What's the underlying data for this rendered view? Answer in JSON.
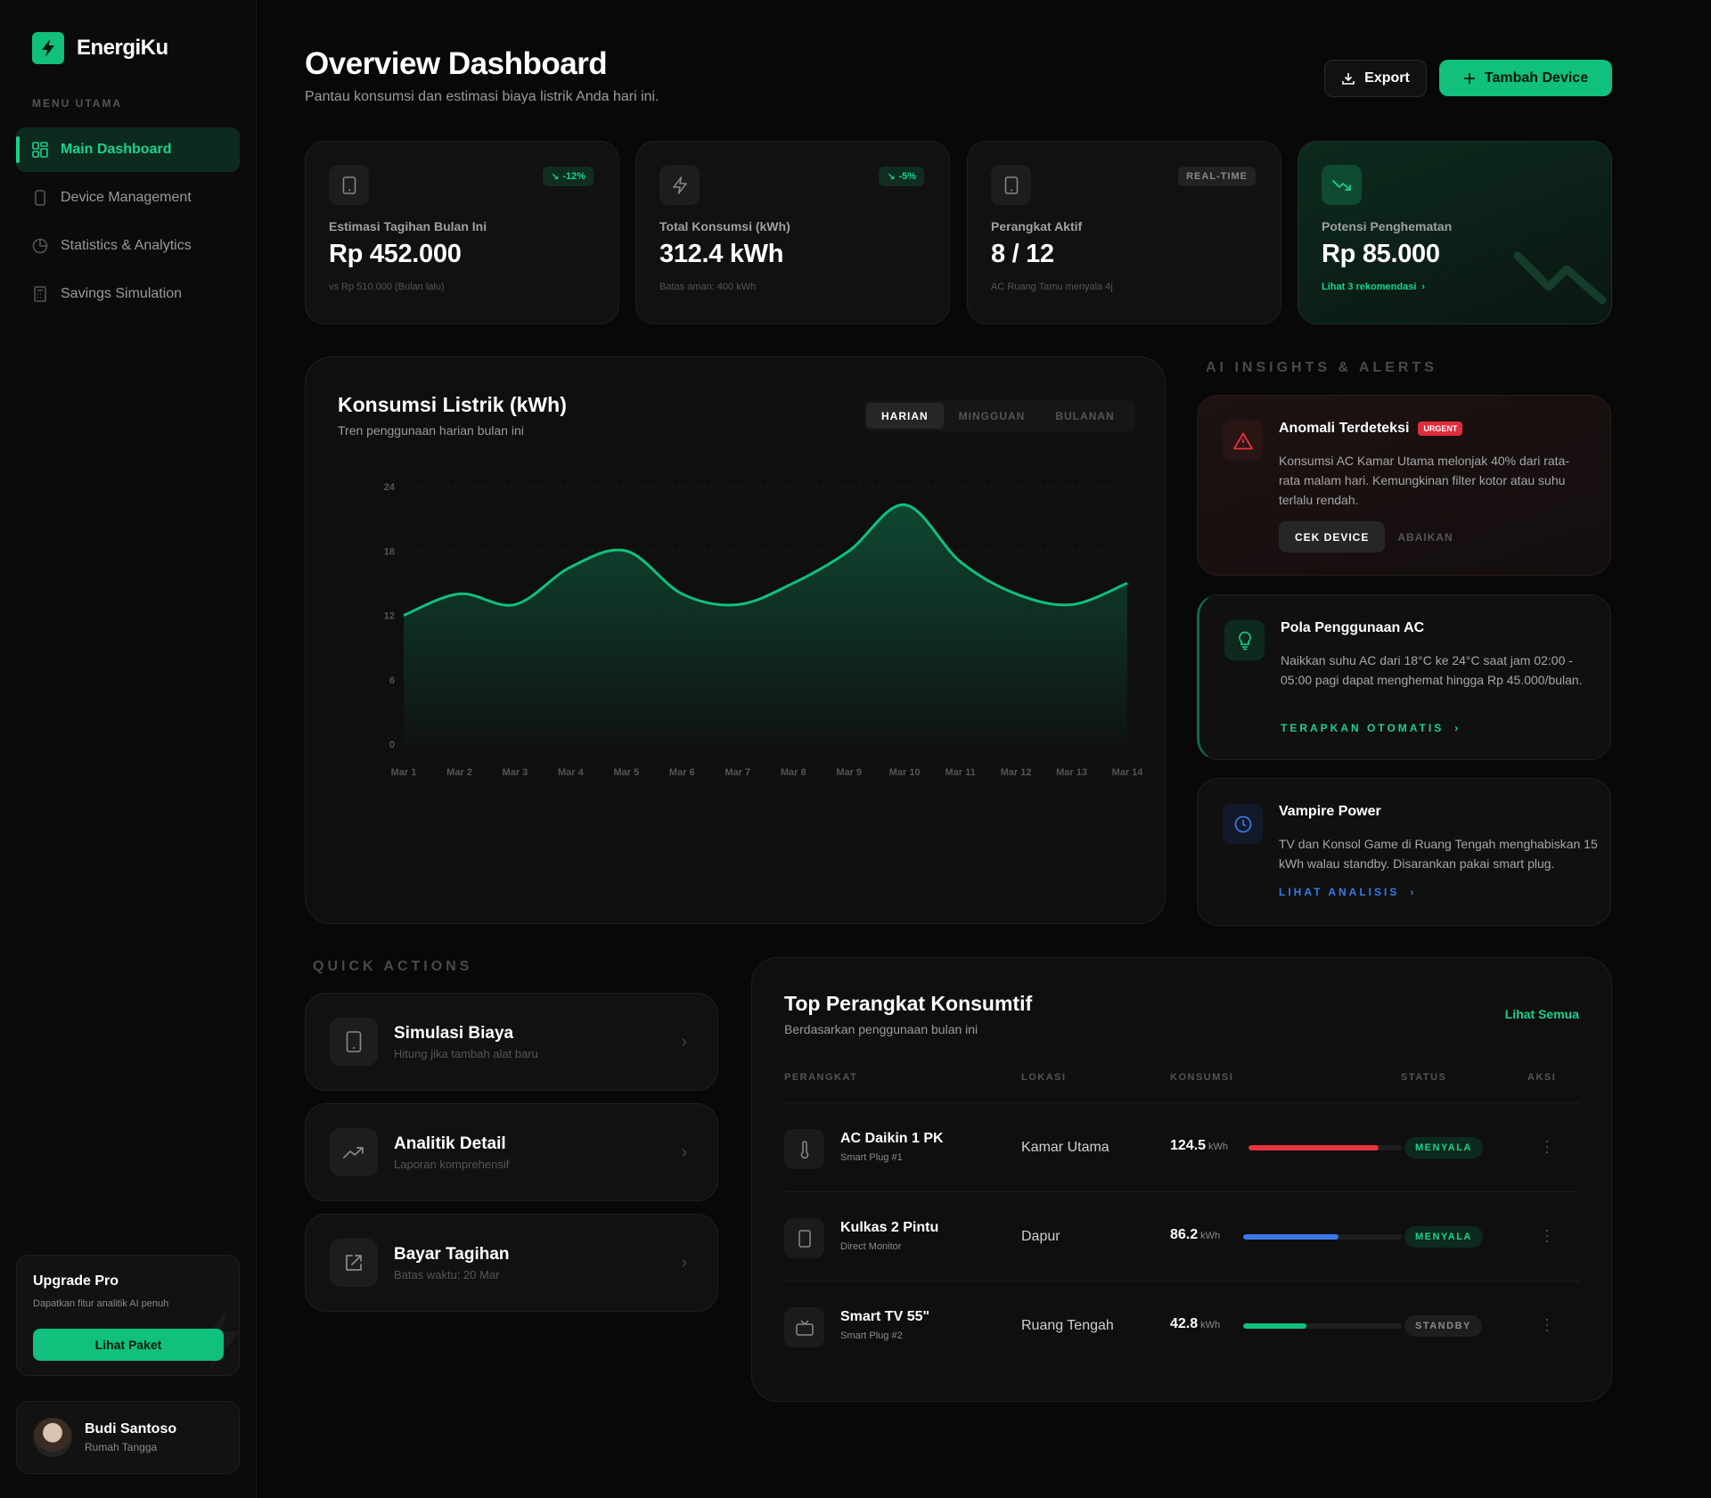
{
  "app": {
    "name": "EnergiKu"
  },
  "sidebar": {
    "menu_heading": "MENU UTAMA",
    "items": [
      {
        "label": "Main Dashboard",
        "icon": "grid-icon",
        "active": true
      },
      {
        "label": "Device Management",
        "icon": "device-icon"
      },
      {
        "label": "Statistics & Analytics",
        "icon": "pie-icon"
      },
      {
        "label": "Savings Simulation",
        "icon": "calculator-icon"
      }
    ],
    "upgrade": {
      "title": "Upgrade Pro",
      "text": "Dapatkan fitur analitik AI penuh",
      "button": "Lihat Paket"
    },
    "user": {
      "name": "Budi Santoso",
      "role": "Rumah Tangga"
    }
  },
  "header": {
    "title": "Overview Dashboard",
    "subtitle": "Pantau konsumsi dan estimasi biaya listrik Anda hari ini.",
    "export_label": "Export",
    "add_label": "Tambah Device"
  },
  "stats": [
    {
      "label": "Estimasi Tagihan Bulan Ini",
      "value": "Rp 452.000",
      "badge": "-12%",
      "foot": "vs Rp 510.000 (Bulan lalu)"
    },
    {
      "label": "Total Konsumsi (kWh)",
      "value": "312.4 kWh",
      "badge": "-5%",
      "foot": "Batas aman: 400 kWh"
    },
    {
      "label": "Perangkat Aktif",
      "value": "8 / 12",
      "badge": "REAL-TIME",
      "foot": "AC Ruang Tamu menyala 4j"
    },
    {
      "label": "Potensi Penghematan",
      "value": "Rp 85.000",
      "link": "Lihat 3 rekomendasi"
    }
  ],
  "chart": {
    "title": "Konsumsi Listrik (kWh)",
    "subtitle": "Tren penggunaan harian bulan ini",
    "tabs": [
      "HARIAN",
      "MINGGUAN",
      "BULANAN"
    ],
    "active_tab": 0
  },
  "chart_data": {
    "type": "area",
    "x": [
      "Mar 1",
      "Mar 2",
      "Mar 3",
      "Mar 4",
      "Mar 5",
      "Mar 6",
      "Mar 7",
      "Mar 8",
      "Mar 9",
      "Mar 10",
      "Mar 11",
      "Mar 12",
      "Mar 13",
      "Mar 14"
    ],
    "values": [
      12,
      14,
      13,
      16.5,
      18,
      14,
      13,
      15,
      18,
      22.3,
      17,
      14,
      13,
      15
    ],
    "yticks": [
      0,
      6,
      12,
      18,
      24
    ],
    "ylim": [
      0,
      24
    ],
    "color": "#10c07c"
  },
  "insights": {
    "heading": "AI INSIGHTS & ALERTS",
    "anomaly": {
      "title": "Anomali Terdeteksi",
      "tag": "URGENT",
      "text": "Konsumsi AC Kamar Utama melonjak 40% dari rata-rata malam hari. Kemungkinan filter kotor atau suhu terlalu rendah.",
      "primary": "CEK DEVICE",
      "secondary": "ABAIKAN"
    },
    "ac": {
      "title": "Pola Penggunaan AC",
      "text": "Naikkan suhu AC dari 18°C ke 24°C saat jam 02:00 - 05:00 pagi dapat menghemat hingga Rp 45.000/bulan.",
      "link": "TERAPKAN OTOMATIS"
    },
    "vampire": {
      "title": "Vampire Power",
      "text": "TV dan Konsol Game di Ruang Tengah menghabiskan 15 kWh walau standby. Disarankan pakai smart plug.",
      "link": "LIHAT ANALISIS"
    }
  },
  "quick_actions": {
    "heading": "QUICK ACTIONS",
    "items": [
      {
        "title": "Simulasi Biaya",
        "sub": "Hitung jika tambah alat baru"
      },
      {
        "title": "Analitik Detail",
        "sub": "Laporan komprehensif"
      },
      {
        "title": "Bayar Tagihan",
        "sub": "Batas waktu: 20 Mar"
      }
    ]
  },
  "top_devices": {
    "title": "Top Perangkat Konsumtif",
    "subtitle": "Berdasarkan penggunaan bulan ini",
    "link": "Lihat Semua",
    "columns": [
      "PERANGKAT",
      "LOKASI",
      "KONSUMSI",
      "STATUS",
      "AKSI"
    ],
    "unit": "kWh",
    "rows": [
      {
        "name": "AC Daikin 1 PK",
        "sub": "Smart Plug #1",
        "location": "Kamar Utama",
        "value": "124.5",
        "fraction": 0.85,
        "bar_color": "#e8323f",
        "status": "MENYALA"
      },
      {
        "name": "Kulkas 2 Pintu",
        "sub": "Direct Monitor",
        "location": "Dapur",
        "value": "86.2",
        "fraction": 0.6,
        "bar_color": "#3a78e8",
        "status": "MENYALA"
      },
      {
        "name": "Smart TV 55\"",
        "sub": "Smart Plug #2",
        "location": "Ruang Tengah",
        "value": "42.8",
        "fraction": 0.4,
        "bar_color": "#10c07c",
        "status": "STANDBY"
      }
    ]
  }
}
